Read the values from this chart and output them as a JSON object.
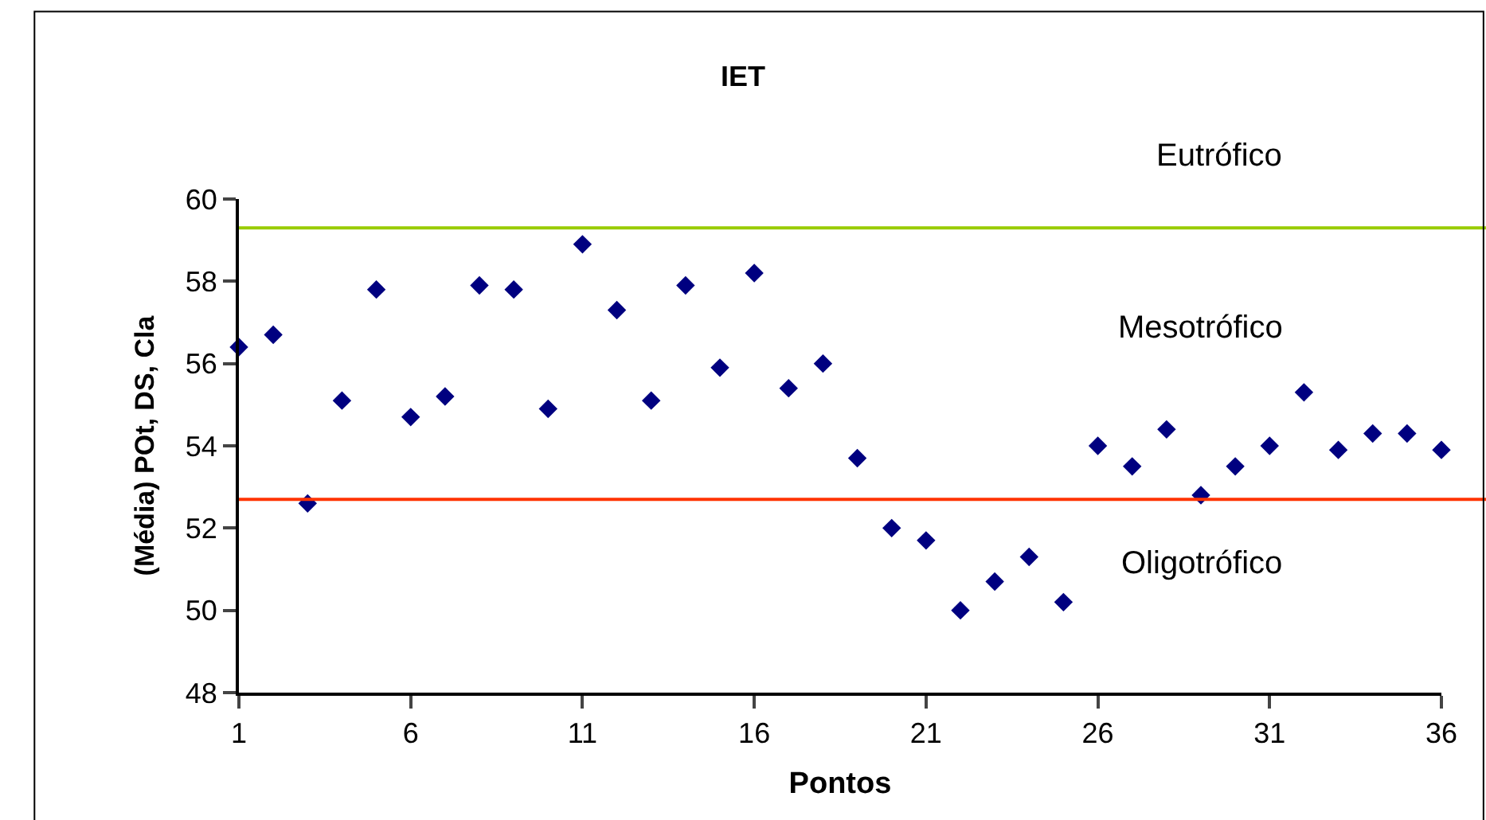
{
  "chart_data": {
    "type": "scatter",
    "title": "IET",
    "xlabel": "Pontos",
    "ylabel": "(Média) POt, DS, Cla",
    "x": [
      1,
      2,
      3,
      4,
      5,
      6,
      7,
      8,
      9,
      10,
      11,
      12,
      13,
      14,
      15,
      16,
      17,
      18,
      19,
      20,
      21,
      22,
      23,
      24,
      25,
      26,
      27,
      28,
      29,
      30,
      31,
      32,
      33,
      34,
      35,
      36
    ],
    "series": [
      {
        "color": "#000080",
        "values": [
          56.4,
          56.7,
          52.6,
          55.1,
          57.8,
          54.7,
          55.2,
          57.9,
          57.8,
          54.9,
          58.9,
          57.3,
          55.1,
          57.9,
          55.9,
          58.2,
          55.4,
          56.0,
          53.7,
          52.0,
          51.7,
          50.0,
          50.7,
          51.3,
          50.2,
          54.0,
          53.5,
          54.4,
          52.8,
          53.5,
          54.0,
          55.3,
          53.9,
          54.3,
          54.3,
          53.9
        ]
      }
    ],
    "marker": "diamond",
    "xlim": [
      1,
      36
    ],
    "xticks": [
      1,
      6,
      11,
      16,
      21,
      26,
      31,
      36
    ],
    "ylim": [
      48,
      60
    ],
    "yticks": [
      48,
      50,
      52,
      54,
      56,
      58,
      60
    ],
    "ref_lines": [
      {
        "axis": "y",
        "value": 59.3,
        "color": "#99cc00"
      },
      {
        "axis": "y",
        "value": 52.7,
        "color": "#ff3300"
      }
    ],
    "annotations": [
      "Eutrófico",
      "Mesotrófico",
      "Oligotrófico"
    ]
  }
}
